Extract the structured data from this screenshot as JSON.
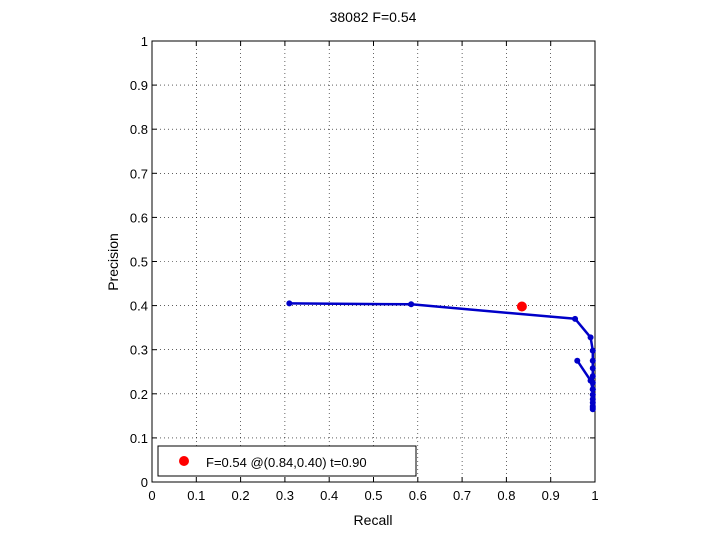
{
  "chart_data": {
    "type": "line",
    "title": "38082 F=0.54",
    "xlabel": "Recall",
    "ylabel": "Precision",
    "xlim": [
      0,
      1
    ],
    "ylim": [
      0,
      1
    ],
    "grid": true,
    "xticks": [
      "0",
      "0.1",
      "0.2",
      "0.3",
      "0.4",
      "0.5",
      "0.6",
      "0.7",
      "0.8",
      "0.9",
      "1"
    ],
    "yticks": [
      "0",
      "0.1",
      "0.2",
      "0.3",
      "0.4",
      "0.5",
      "0.6",
      "0.7",
      "0.8",
      "0.9",
      "1"
    ],
    "series": [
      {
        "color": "#0000c8",
        "x": [
          0.31,
          0.585,
          0.955,
          0.99,
          0.995,
          0.995,
          0.995,
          0.995,
          0.995,
          0.995,
          0.995,
          0.995,
          0.995,
          0.995,
          0.995,
          0.995
        ],
        "y": [
          0.405,
          0.403,
          0.37,
          0.328,
          0.298,
          0.275,
          0.258,
          0.24,
          0.225,
          0.21,
          0.198,
          0.188,
          0.18,
          0.172,
          0.168,
          0.165
        ]
      },
      {
        "color": "#0000c8",
        "x": [
          0.96,
          0.99,
          0.995
        ],
        "y": [
          0.275,
          0.23,
          0.21
        ]
      }
    ],
    "best_point": {
      "x": 0.835,
      "y": 0.398,
      "color": "#ff0000"
    },
    "legend": {
      "placement": "bottom-left",
      "label": "F=0.54 @(0.84,0.40) t=0.90"
    }
  }
}
